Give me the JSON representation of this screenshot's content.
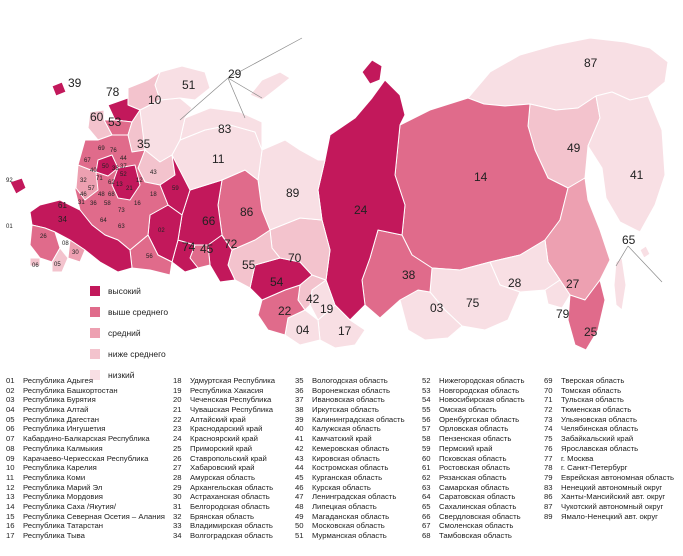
{
  "colors": {
    "high": "#c2185b",
    "above": "#e06b8b",
    "medium": "#eda0b1",
    "below": "#f3c3cd",
    "low": "#f8dfe4",
    "border": "#ffffff",
    "ink": "#222222"
  },
  "legend": [
    {
      "key": "high",
      "label": "высокий"
    },
    {
      "key": "above",
      "label": "выше среднего"
    },
    {
      "key": "medium",
      "label": "средний"
    },
    {
      "key": "below",
      "label": "ниже среднего"
    },
    {
      "key": "low",
      "label": "низкий"
    }
  ],
  "map_labels": {
    "l87": "87",
    "l49": "49",
    "l41": "41",
    "l14": "14",
    "l24": "24",
    "l65": "65",
    "l27": "27",
    "l25": "25",
    "l28": "28",
    "l79": "79",
    "l75": "75",
    "l03": "03",
    "l38": "38",
    "l04": "04",
    "l17": "17",
    "l19": "19",
    "l42": "42",
    "l22": "22",
    "l54": "54",
    "l70": "70",
    "l55": "55",
    "l72": "72",
    "l45": "45",
    "l74": "74",
    "l66": "66",
    "l86": "86",
    "l89": "89",
    "l11": "11",
    "l83": "83",
    "l29": "29",
    "l51": "51",
    "l10": "10",
    "l78": "78",
    "l53": "53",
    "l60": "60",
    "l35": "35",
    "l39": "39",
    "l92": "92",
    "l01": "01",
    "l06": "06",
    "l26": "26",
    "l61": "61",
    "l34": "34",
    "l30": "30",
    "l08": "08",
    "l05": "05",
    "l64": "64",
    "l63": "63",
    "l73": "73",
    "l58": "58",
    "l43": "43",
    "l59": "59",
    "l02": "02",
    "l18": "18",
    "l16": "16",
    "l21": "21",
    "l12": "12",
    "l52": "52",
    "l44": "44",
    "l76": "76",
    "l37": "37",
    "l33": "33",
    "l50": "50",
    "l62": "62",
    "l71": "71",
    "l40": "40",
    "l32": "32",
    "l67": "67",
    "l69": "69",
    "l57": "57",
    "l46": "46",
    "l31": "31",
    "l36": "36",
    "l48": "48",
    "l68": "68",
    "l13": "13",
    "l56": "56"
  },
  "regions": [
    [
      {
        "num": "01",
        "name": "Республика Адыгея"
      },
      {
        "num": "02",
        "name": "Республика Башкортостан"
      },
      {
        "num": "03",
        "name": "Республика Бурятия"
      },
      {
        "num": "04",
        "name": "Республика Алтай"
      },
      {
        "num": "05",
        "name": "Республика Дагестан"
      },
      {
        "num": "06",
        "name": "Республика Ингушетия"
      },
      {
        "num": "07",
        "name": "Кабардино-Балкарская Республика"
      },
      {
        "num": "08",
        "name": "Республика Калмыкия"
      },
      {
        "num": "09",
        "name": "Карачаево-Черкесская Республика"
      },
      {
        "num": "10",
        "name": "Республика Карелия"
      },
      {
        "num": "11",
        "name": "Республика Коми"
      },
      {
        "num": "12",
        "name": "Республика Марий Эл"
      },
      {
        "num": "13",
        "name": "Республика Мордовия"
      },
      {
        "num": "14",
        "name": "Республика Саха /Якутия/"
      },
      {
        "num": "15",
        "name": "Республика Северная Осетия – Алания"
      },
      {
        "num": "16",
        "name": "Республика Татарстан"
      },
      {
        "num": "17",
        "name": "Республика Тыва"
      }
    ],
    [
      {
        "num": "18",
        "name": "Удмуртская Республика"
      },
      {
        "num": "19",
        "name": "Республика Хакасия"
      },
      {
        "num": "20",
        "name": "Чеченская Республика"
      },
      {
        "num": "21",
        "name": "Чувашская Республика"
      },
      {
        "num": "22",
        "name": "Алтайский край"
      },
      {
        "num": "23",
        "name": "Краснодарский край"
      },
      {
        "num": "24",
        "name": "Красноярский край"
      },
      {
        "num": "25",
        "name": "Приморский край"
      },
      {
        "num": "26",
        "name": "Ставропольский край"
      },
      {
        "num": "27",
        "name": "Хабаровский край"
      },
      {
        "num": "28",
        "name": "Амурская область"
      },
      {
        "num": "29",
        "name": "Архангельская область"
      },
      {
        "num": "30",
        "name": "Астраханская область"
      },
      {
        "num": "31",
        "name": "Белгородская область"
      },
      {
        "num": "32",
        "name": "Брянская область"
      },
      {
        "num": "33",
        "name": "Владимирская область"
      },
      {
        "num": "34",
        "name": "Волгоградская область"
      }
    ],
    [
      {
        "num": "35",
        "name": "Вологодская область"
      },
      {
        "num": "36",
        "name": "Воронежская область"
      },
      {
        "num": "37",
        "name": "Ивановская область"
      },
      {
        "num": "38",
        "name": "Иркутская область"
      },
      {
        "num": "39",
        "name": "Калининградская область"
      },
      {
        "num": "40",
        "name": "Калужская область"
      },
      {
        "num": "41",
        "name": "Камчатский край"
      },
      {
        "num": "42",
        "name": "Кемеровская область"
      },
      {
        "num": "43",
        "name": "Кировская область"
      },
      {
        "num": "44",
        "name": "Костромская область"
      },
      {
        "num": "45",
        "name": "Курганская область"
      },
      {
        "num": "46",
        "name": "Курская область"
      },
      {
        "num": "47",
        "name": "Ленинградская область"
      },
      {
        "num": "48",
        "name": "Липецкая область"
      },
      {
        "num": "49",
        "name": "Магаданская область"
      },
      {
        "num": "50",
        "name": "Московская область"
      },
      {
        "num": "51",
        "name": "Мурманская область"
      }
    ],
    [
      {
        "num": "52",
        "name": "Нижегородская область"
      },
      {
        "num": "53",
        "name": "Новгородская область"
      },
      {
        "num": "54",
        "name": "Новосибирская область"
      },
      {
        "num": "55",
        "name": "Омская область"
      },
      {
        "num": "56",
        "name": "Оренбургская область"
      },
      {
        "num": "57",
        "name": "Орловская область"
      },
      {
        "num": "58",
        "name": "Пензенская область"
      },
      {
        "num": "59",
        "name": "Пермский край"
      },
      {
        "num": "60",
        "name": "Псковская область"
      },
      {
        "num": "61",
        "name": "Ростовская область"
      },
      {
        "num": "62",
        "name": "Рязанская область"
      },
      {
        "num": "63",
        "name": "Самарская область"
      },
      {
        "num": "64",
        "name": "Саратовская область"
      },
      {
        "num": "65",
        "name": "Сахалинская область"
      },
      {
        "num": "66",
        "name": "Свердловская область"
      },
      {
        "num": "67",
        "name": "Смоленская область"
      },
      {
        "num": "68",
        "name": "Тамбовская область"
      }
    ],
    [
      {
        "num": "69",
        "name": "Тверская область"
      },
      {
        "num": "70",
        "name": "Томская область"
      },
      {
        "num": "71",
        "name": "Тульская область"
      },
      {
        "num": "72",
        "name": "Тюменская область"
      },
      {
        "num": "73",
        "name": "Ульяновская область"
      },
      {
        "num": "74",
        "name": "Челябинская область"
      },
      {
        "num": "75",
        "name": "Забайкальский край"
      },
      {
        "num": "76",
        "name": "Ярославская область"
      },
      {
        "num": "77",
        "name": "г. Москва"
      },
      {
        "num": "78",
        "name": "г. Санкт-Петербург"
      },
      {
        "num": "79",
        "name": "Еврейская автономная область"
      },
      {
        "num": "83",
        "name": "Ненецкий автономный округ"
      },
      {
        "num": "86",
        "name": "Ханты-Мансийский авт. округ"
      },
      {
        "num": "87",
        "name": "Чукотский автономный округ"
      },
      {
        "num": "89",
        "name": "Ямало-Ненецкий авт. округ"
      }
    ]
  ]
}
